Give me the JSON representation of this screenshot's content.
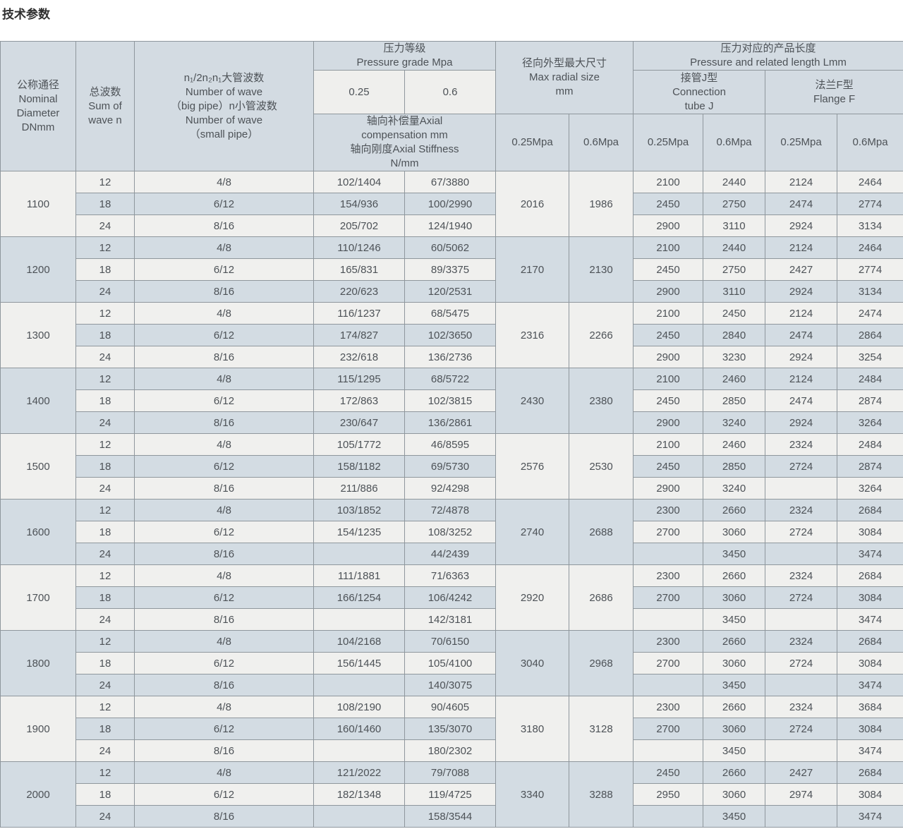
{
  "page_title": "技术参数",
  "colors": {
    "header_bg": "#d3dbe2",
    "row_light_bg": "#f0f0ee",
    "row_blue_bg": "#d3dce3",
    "pressure_subcell_bg": "#efefed",
    "border": "#8f979d",
    "text": "#4d5257",
    "title_text": "#2f2f2f"
  },
  "table": {
    "header": {
      "nominal_diameter": "公称通径\nNominal\nDiameter\nDNmm",
      "sum_of_wave": "总波数\nSum of\nwave n",
      "wave_numbers": "n₁/2n₂n₁大管波数\nNumber of wave\n（big pipe）n小管波数\nNumber of wave\n（small pipe）",
      "pressure_grade": "压力等级\nPressure grade Mpa",
      "pressure_025": "0.25",
      "pressure_06": "0.6",
      "axial": "轴向补偿量Axial\ncompensation mm\n轴向刚度Axial Stiffness\nN/mm",
      "max_radial": "径向外型最大尺寸\nMax radial size\nmm",
      "radial_025": "0.25Mpa",
      "radial_06": "0.6Mpa",
      "length": "压力对应的产品长度\nPressure and related length Lmm",
      "connection_j": "接管J型\nConnection\ntube J",
      "flange_f": "法兰F型\nFlange F",
      "j_025": "0.25Mpa",
      "j_06": "0.6Mpa",
      "f_025": "0.25Mpa",
      "f_06": "0.6Mpa"
    },
    "groups": [
      {
        "dn": "1100",
        "radial_025": "2016",
        "radial_06": "1986",
        "rows": [
          {
            "waves": "12",
            "split": "4/8",
            "axial_025": "102/1404",
            "axial_06": "67/3880",
            "j_025": "2100",
            "j_06": "2440",
            "f_025": "2124",
            "f_06": "2464"
          },
          {
            "waves": "18",
            "split": "6/12",
            "axial_025": "154/936",
            "axial_06": "100/2990",
            "j_025": "2450",
            "j_06": "2750",
            "f_025": "2474",
            "f_06": "2774"
          },
          {
            "waves": "24",
            "split": "8/16",
            "axial_025": "205/702",
            "axial_06": "124/1940",
            "j_025": "2900",
            "j_06": "3110",
            "f_025": "2924",
            "f_06": "3134"
          }
        ]
      },
      {
        "dn": "1200",
        "radial_025": "2170",
        "radial_06": "2130",
        "rows": [
          {
            "waves": "12",
            "split": "4/8",
            "axial_025": "110/1246",
            "axial_06": "60/5062",
            "j_025": "2100",
            "j_06": "2440",
            "f_025": "2124",
            "f_06": "2464"
          },
          {
            "waves": "18",
            "split": "6/12",
            "axial_025": "165/831",
            "axial_06": "89/3375",
            "j_025": "2450",
            "j_06": "2750",
            "f_025": "2427",
            "f_06": "2774"
          },
          {
            "waves": "24",
            "split": "8/16",
            "axial_025": "220/623",
            "axial_06": "120/2531",
            "j_025": "2900",
            "j_06": "3110",
            "f_025": "2924",
            "f_06": "3134"
          }
        ]
      },
      {
        "dn": "1300",
        "radial_025": "2316",
        "radial_06": "2266",
        "rows": [
          {
            "waves": "12",
            "split": "4/8",
            "axial_025": "116/1237",
            "axial_06": "68/5475",
            "j_025": "2100",
            "j_06": "2450",
            "f_025": "2124",
            "f_06": "2474"
          },
          {
            "waves": "18",
            "split": "6/12",
            "axial_025": "174/827",
            "axial_06": "102/3650",
            "j_025": "2450",
            "j_06": "2840",
            "f_025": "2474",
            "f_06": "2864"
          },
          {
            "waves": "24",
            "split": "8/16",
            "axial_025": "232/618",
            "axial_06": "136/2736",
            "j_025": "2900",
            "j_06": "3230",
            "f_025": "2924",
            "f_06": "3254"
          }
        ]
      },
      {
        "dn": "1400",
        "radial_025": "2430",
        "radial_06": "2380",
        "rows": [
          {
            "waves": "12",
            "split": "4/8",
            "axial_025": "115/1295",
            "axial_06": "68/5722",
            "j_025": "2100",
            "j_06": "2460",
            "f_025": "2124",
            "f_06": "2484"
          },
          {
            "waves": "18",
            "split": "6/12",
            "axial_025": "172/863",
            "axial_06": "102/3815",
            "j_025": "2450",
            "j_06": "2850",
            "f_025": "2474",
            "f_06": "2874"
          },
          {
            "waves": "24",
            "split": "8/16",
            "axial_025": "230/647",
            "axial_06": "136/2861",
            "j_025": "2900",
            "j_06": "3240",
            "f_025": "2924",
            "f_06": "3264"
          }
        ]
      },
      {
        "dn": "1500",
        "radial_025": "2576",
        "radial_06": "2530",
        "rows": [
          {
            "waves": "12",
            "split": "4/8",
            "axial_025": "105/1772",
            "axial_06": "46/8595",
            "j_025": "2100",
            "j_06": "2460",
            "f_025": "2324",
            "f_06": "2484"
          },
          {
            "waves": "18",
            "split": "6/12",
            "axial_025": "158/1182",
            "axial_06": "69/5730",
            "j_025": "2450",
            "j_06": "2850",
            "f_025": "2724",
            "f_06": "2874"
          },
          {
            "waves": "24",
            "split": "8/16",
            "axial_025": "211/886",
            "axial_06": "92/4298",
            "j_025": "2900",
            "j_06": "3240",
            "f_025": "",
            "f_06": "3264"
          }
        ]
      },
      {
        "dn": "1600",
        "radial_025": "2740",
        "radial_06": "2688",
        "rows": [
          {
            "waves": "12",
            "split": "4/8",
            "axial_025": "103/1852",
            "axial_06": "72/4878",
            "j_025": "2300",
            "j_06": "2660",
            "f_025": "2324",
            "f_06": "2684"
          },
          {
            "waves": "18",
            "split": "6/12",
            "axial_025": "154/1235",
            "axial_06": "108/3252",
            "j_025": "2700",
            "j_06": "3060",
            "f_025": "2724",
            "f_06": "3084"
          },
          {
            "waves": "24",
            "split": "8/16",
            "axial_025": "",
            "axial_06": "44/2439",
            "j_025": "",
            "j_06": "3450",
            "f_025": "",
            "f_06": "3474"
          }
        ]
      },
      {
        "dn": "1700",
        "radial_025": "2920",
        "radial_06": "2686",
        "rows": [
          {
            "waves": "12",
            "split": "4/8",
            "axial_025": "111/1881",
            "axial_06": "71/6363",
            "j_025": "2300",
            "j_06": "2660",
            "f_025": "2324",
            "f_06": "2684"
          },
          {
            "waves": "18",
            "split": "6/12",
            "axial_025": "166/1254",
            "axial_06": "106/4242",
            "j_025": "2700",
            "j_06": "3060",
            "f_025": "2724",
            "f_06": "3084"
          },
          {
            "waves": "24",
            "split": "8/16",
            "axial_025": "",
            "axial_06": "142/3181",
            "j_025": "",
            "j_06": "3450",
            "f_025": "",
            "f_06": "3474"
          }
        ]
      },
      {
        "dn": "1800",
        "radial_025": "3040",
        "radial_06": "2968",
        "rows": [
          {
            "waves": "12",
            "split": "4/8",
            "axial_025": "104/2168",
            "axial_06": "70/6150",
            "j_025": "2300",
            "j_06": "2660",
            "f_025": "2324",
            "f_06": "2684"
          },
          {
            "waves": "18",
            "split": "6/12",
            "axial_025": "156/1445",
            "axial_06": "105/4100",
            "j_025": "2700",
            "j_06": "3060",
            "f_025": "2724",
            "f_06": "3084"
          },
          {
            "waves": "24",
            "split": "8/16",
            "axial_025": "",
            "axial_06": "140/3075",
            "j_025": "",
            "j_06": "3450",
            "f_025": "",
            "f_06": "3474"
          }
        ]
      },
      {
        "dn": "1900",
        "radial_025": "3180",
        "radial_06": "3128",
        "rows": [
          {
            "waves": "12",
            "split": "4/8",
            "axial_025": "108/2190",
            "axial_06": "90/4605",
            "j_025": "2300",
            "j_06": "2660",
            "f_025": "2324",
            "f_06": "3684"
          },
          {
            "waves": "18",
            "split": "6/12",
            "axial_025": "160/1460",
            "axial_06": "135/3070",
            "j_025": "2700",
            "j_06": "3060",
            "f_025": "2724",
            "f_06": "3084"
          },
          {
            "waves": "24",
            "split": "8/16",
            "axial_025": "",
            "axial_06": "180/2302",
            "j_025": "",
            "j_06": "3450",
            "f_025": "",
            "f_06": "3474"
          }
        ]
      },
      {
        "dn": "2000",
        "radial_025": "3340",
        "radial_06": "3288",
        "rows": [
          {
            "waves": "12",
            "split": "4/8",
            "axial_025": "121/2022",
            "axial_06": "79/7088",
            "j_025": "2450",
            "j_06": "2660",
            "f_025": "2427",
            "f_06": "2684"
          },
          {
            "waves": "18",
            "split": "6/12",
            "axial_025": "182/1348",
            "axial_06": "119/4725",
            "j_025": "2950",
            "j_06": "3060",
            "f_025": "2974",
            "f_06": "3084"
          },
          {
            "waves": "24",
            "split": "8/16",
            "axial_025": "",
            "axial_06": "158/3544",
            "j_025": "",
            "j_06": "3450",
            "f_025": "",
            "f_06": "3474"
          }
        ]
      }
    ]
  }
}
